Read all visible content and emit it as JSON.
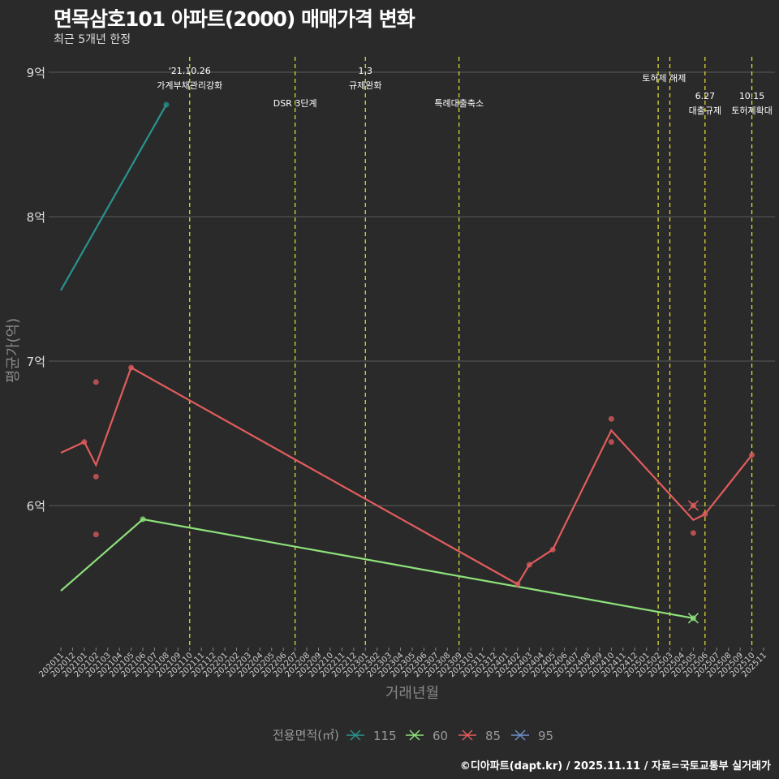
{
  "header": {
    "title": "면목삼호101 아파트(2000) 매매가격 변화",
    "subtitle": "최근 5개년 한정"
  },
  "caption": "©디아파트(dapt.kr) / 2025.11.11 / 자료=국토교통부 실거래가",
  "colors": {
    "115": "#2a938c",
    "60": "#8ee27a",
    "85": "#e25c5c",
    "95": "#6f8fc8",
    "vline": "#e6e62e"
  },
  "chart_data": {
    "type": "line",
    "title": "면목삼호101 아파트(2000) 매매가격 변화",
    "xlabel": "거래년월",
    "ylabel": "평균가(억)",
    "ylim": [
      5.03,
      9.1
    ],
    "yticks": [
      {
        "v": 6,
        "label": "6억"
      },
      {
        "v": 7,
        "label": "7억"
      },
      {
        "v": 8,
        "label": "8억"
      },
      {
        "v": 9,
        "label": "9억"
      }
    ],
    "x_categories": [
      "202011",
      "202012",
      "202101",
      "202102",
      "202103",
      "202104",
      "202105",
      "202106",
      "202107",
      "202108",
      "202109",
      "202110",
      "202111",
      "202112",
      "202201",
      "202202",
      "202203",
      "202204",
      "202205",
      "202206",
      "202207",
      "202208",
      "202209",
      "202210",
      "202211",
      "202212",
      "202301",
      "202302",
      "202303",
      "202304",
      "202305",
      "202306",
      "202307",
      "202308",
      "202309",
      "202310",
      "202311",
      "202312",
      "202401",
      "202402",
      "202403",
      "202404",
      "202405",
      "202406",
      "202407",
      "202408",
      "202409",
      "202410",
      "202411",
      "202412",
      "202501",
      "202502",
      "202503",
      "202504",
      "202505",
      "202506",
      "202507",
      "202508",
      "202509",
      "202510",
      "202511"
    ],
    "legend": {
      "title": "전용면적(㎡)",
      "entries": [
        "115",
        "60",
        "85",
        "95"
      ],
      "placement": "bottom"
    },
    "series": [
      {
        "name": "115",
        "line": [
          [
            "202011",
            7.49
          ],
          [
            "202108",
            8.775
          ]
        ],
        "points": [
          [
            "202108",
            8.775
          ]
        ],
        "crosses": []
      },
      {
        "name": "60",
        "line": [
          [
            "202011",
            5.41
          ],
          [
            "202106",
            5.905
          ],
          [
            "202505",
            5.22
          ]
        ],
        "points": [
          [
            "202106",
            5.905
          ]
        ],
        "crosses": [
          [
            "202505",
            5.22
          ]
        ]
      },
      {
        "name": "85",
        "line": [
          [
            "202011",
            6.365
          ],
          [
            "202101",
            6.44
          ],
          [
            "202102",
            6.28
          ],
          [
            "202105",
            6.955
          ],
          [
            "202402",
            5.455
          ],
          [
            "202403",
            5.59
          ],
          [
            "202405",
            5.695
          ],
          [
            "202410",
            6.52
          ],
          [
            "202505",
            5.9
          ],
          [
            "202506",
            5.94
          ],
          [
            "202510",
            6.35
          ]
        ],
        "points": [
          [
            "202101",
            6.44
          ],
          [
            "202102",
            6.855
          ],
          [
            "202102",
            6.2
          ],
          [
            "202102",
            5.8
          ],
          [
            "202105",
            6.955
          ],
          [
            "202402",
            5.455
          ],
          [
            "202403",
            5.59
          ],
          [
            "202405",
            5.695
          ],
          [
            "202410",
            6.6
          ],
          [
            "202410",
            6.44
          ],
          [
            "202505",
            5.81
          ],
          [
            "202506",
            5.94
          ],
          [
            "202510",
            6.35
          ]
        ],
        "crosses": [
          [
            "202505",
            6.0
          ]
        ]
      },
      {
        "name": "95",
        "line": [],
        "points": [],
        "crosses": []
      }
    ],
    "annotations": [
      {
        "x": "202110",
        "lines": [
          "'21.10.26",
          "가계부채관리강화"
        ],
        "row": 0
      },
      {
        "x": "202207",
        "lines": [
          "DSR 3단계"
        ],
        "row": 2
      },
      {
        "x": "202301",
        "lines": [
          "1.3",
          "규제완화"
        ],
        "row": 0
      },
      {
        "x": "202309",
        "lines": [
          "특례대출축소"
        ],
        "row": 2
      },
      {
        "x": "202502",
        "lines": [],
        "row": 0
      },
      {
        "x": "202503",
        "lines": [
          "토허제 해제"
        ],
        "row": 1,
        "shift": -0.5
      },
      {
        "x": "202506",
        "lines": [
          "6.27",
          "대출규제"
        ],
        "row": 3
      },
      {
        "x": "202510",
        "lines": [
          "10.15",
          "토허제확대"
        ],
        "row": 3
      }
    ]
  }
}
